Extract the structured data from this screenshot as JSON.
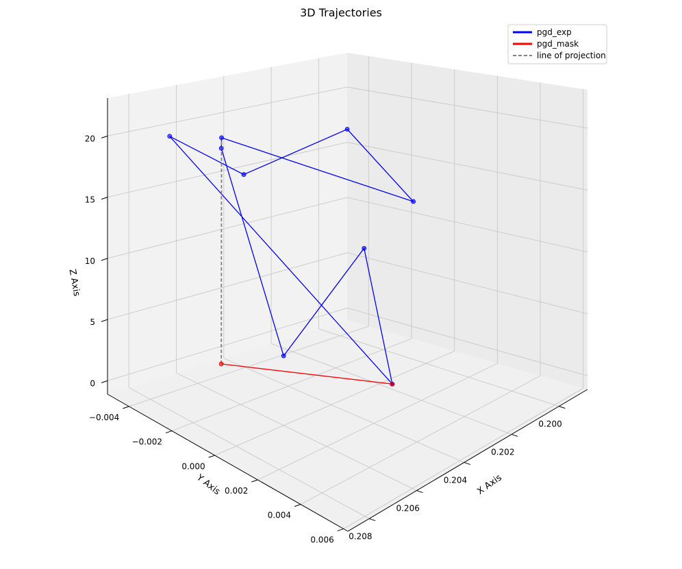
{
  "chart_data": {
    "type": "line3d",
    "title": "3D Trajectories",
    "xlabel": "X Axis",
    "ylabel": "Y Axis",
    "zlabel": "Z Axis",
    "xlim": [
      0.1988,
      0.2089
    ],
    "ylim": [
      -0.005,
      0.0062
    ],
    "zlim": [
      -1.1,
      23.1
    ],
    "x_ticks": [
      "0.200",
      "0.202",
      "0.204",
      "0.206",
      "0.208"
    ],
    "y_ticks": [
      "−0.004",
      "−0.002",
      "0.000",
      "0.002",
      "0.004",
      "0.006"
    ],
    "z_ticks": [
      "0",
      "5",
      "10",
      "15",
      "20"
    ],
    "grid": true,
    "legend_position": "top-right",
    "series": [
      {
        "name": "pgd_exp",
        "color": "#0000ff",
        "points": [
          [
            0.2035,
            0.0023,
            1.6
          ],
          [
            0.1989,
            -0.0041,
            5.9
          ],
          [
            0.2079,
            0.0021,
            6.6
          ],
          [
            0.2051,
            -0.0039,
            17.8
          ],
          [
            0.205,
            -0.004,
            18.6
          ],
          [
            0.2018,
            0.0014,
            14.0
          ],
          [
            0.2035,
            0.0002,
            20.0
          ],
          [
            0.2056,
            -0.0023,
            16.5
          ],
          [
            0.208,
            -0.0031,
            20.2
          ],
          [
            0.2035,
            0.0023,
            1.6
          ]
        ]
      },
      {
        "name": "pgd_mask",
        "color": "#ff0000",
        "points": [
          [
            0.2035,
            0.0023,
            1.6
          ],
          [
            0.2051,
            -0.0039,
            0.0
          ]
        ]
      },
      {
        "name": "line of projection",
        "color": "#808080",
        "points": [
          [
            0.2051,
            -0.0039,
            0.0
          ],
          [
            0.205,
            -0.004,
            18.6
          ]
        ]
      }
    ]
  }
}
